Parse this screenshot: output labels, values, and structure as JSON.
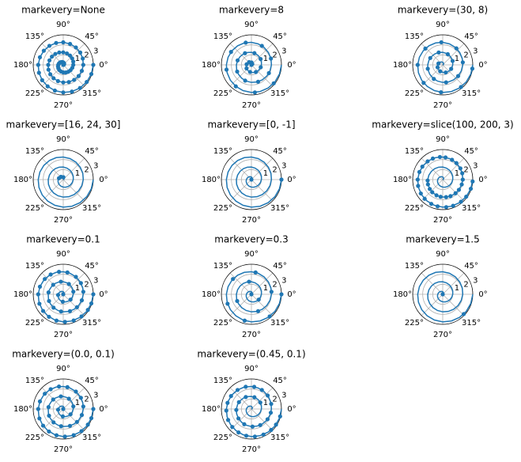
{
  "polar_axes": {
    "rlim": [
      0,
      3
    ],
    "rticks": [
      1,
      2,
      3
    ],
    "theta_ticks": [
      {
        "value": 0,
        "label": "0°"
      },
      {
        "value": 45,
        "label": "45°"
      },
      {
        "value": 90,
        "label": "90°"
      },
      {
        "value": 135,
        "label": "135°"
      },
      {
        "value": 180,
        "label": "180°"
      },
      {
        "value": 225,
        "label": "225°"
      },
      {
        "value": 270,
        "label": "270°"
      },
      {
        "value": 315,
        "label": "315°"
      }
    ],
    "line_color": "#1f77b4",
    "spiral_r": [
      0,
      0.05,
      0.1,
      0.15,
      0.2,
      0.25,
      0.3,
      0.35,
      0.4,
      0.45,
      0.5,
      0.55,
      0.6,
      0.65,
      0.7,
      0.75,
      0.8,
      0.85,
      0.9,
      0.95,
      1,
      1.05,
      1.1,
      1.15,
      1.2,
      1.25,
      1.3,
      1.35,
      1.4,
      1.45,
      1.5,
      1.55,
      1.6,
      1.65,
      1.7,
      1.75,
      1.8,
      1.85,
      1.9,
      1.95,
      2,
      2.05,
      2.1,
      2.15,
      2.2,
      2.25,
      2.3,
      2.35,
      2.4,
      2.45,
      2.5,
      2.55,
      2.6,
      2.65,
      2.7,
      2.75,
      2.8,
      2.85,
      2.9,
      2.95,
      3
    ]
  },
  "chart_data": [
    {
      "type": "polar",
      "title": "markevery=None",
      "markers_r": [
        0,
        0.05,
        0.1,
        0.15,
        0.2,
        0.25,
        0.3,
        0.35,
        0.4,
        0.45,
        0.5,
        0.55,
        0.6,
        0.65,
        0.7,
        0.75,
        0.8,
        0.85,
        0.9,
        0.95,
        1,
        1.05,
        1.1,
        1.15,
        1.2,
        1.25,
        1.3,
        1.35,
        1.4,
        1.45,
        1.5,
        1.55,
        1.6,
        1.65,
        1.7,
        1.75,
        1.8,
        1.85,
        1.9,
        1.95,
        2,
        2.05,
        2.1,
        2.15,
        2.2,
        2.25,
        2.3,
        2.35,
        2.4,
        2.45,
        2.5,
        2.55,
        2.6,
        2.65,
        2.7,
        2.75,
        2.8,
        2.85,
        2.9,
        2.95,
        3
      ]
    },
    {
      "type": "polar",
      "title": "markevery=8",
      "markers_r": [
        0,
        0.12,
        0.24,
        0.36,
        0.48,
        0.6,
        0.72,
        0.84,
        0.96,
        1.09,
        1.21,
        1.33,
        1.45,
        1.57,
        1.69,
        1.81,
        1.93,
        2.05,
        2.17,
        2.29,
        2.41,
        2.53,
        2.65,
        2.77,
        2.89
      ]
    },
    {
      "type": "polar",
      "title": "markevery=(30, 8)",
      "markers_r": [
        0.45,
        0.57,
        0.69,
        0.81,
        0.93,
        1.06,
        1.18,
        1.3,
        1.42,
        1.54,
        1.66,
        1.78,
        1.9,
        2.02,
        2.14,
        2.26,
        2.38,
        2.5,
        2.62,
        2.74,
        2.86,
        2.98
      ]
    },
    {
      "type": "polar",
      "title": "markevery=[16, 24, 30]",
      "markers_r": [
        0.24,
        0.36,
        0.45
      ]
    },
    {
      "type": "polar",
      "title": "markevery=[0, -1]",
      "markers_r": [
        0,
        3
      ]
    },
    {
      "type": "polar",
      "title": "markevery=slice(100, 200, 3)",
      "markers_r": [
        1.51,
        1.55,
        1.6,
        1.64,
        1.69,
        1.73,
        1.78,
        1.82,
        1.87,
        1.91,
        1.96,
        2,
        2.05,
        2.09,
        2.14,
        2.18,
        2.23,
        2.27,
        2.32,
        2.36,
        2.41,
        2.45,
        2.5,
        2.54,
        2.59,
        2.63,
        2.68,
        2.72,
        2.77,
        2.81,
        2.86,
        2.9,
        2.95,
        2.99
      ]
    },
    {
      "type": "polar",
      "title": "markevery=0.1",
      "markers_r": [
        0,
        0.52,
        0.74,
        0.9,
        1.04,
        1.17,
        1.28,
        1.38,
        1.48,
        1.57,
        1.65,
        1.73,
        1.81,
        1.88,
        1.95,
        2.02,
        2.09,
        2.15,
        2.22,
        2.28,
        2.34,
        2.39,
        2.45,
        2.5,
        2.56,
        2.61,
        2.66,
        2.71,
        2.76,
        2.81,
        2.86,
        2.91,
        2.95,
        3
      ]
    },
    {
      "type": "polar",
      "title": "markevery=0.3",
      "markers_r": [
        0,
        0.9,
        1.28,
        1.57,
        1.81,
        2.02,
        2.22,
        2.39,
        2.56,
        2.71,
        2.86,
        3
      ]
    },
    {
      "type": "polar",
      "title": "markevery=1.5",
      "markers_r": [
        0,
        2.88
      ]
    },
    {
      "type": "polar",
      "title": "markevery=(0.0, 0.1)",
      "markers_r": [
        0,
        0.52,
        0.74,
        0.9,
        1.04,
        1.17,
        1.28,
        1.38,
        1.48,
        1.57,
        1.65,
        1.73,
        1.81,
        1.88,
        1.95,
        2.02,
        2.09,
        2.15,
        2.22,
        2.28,
        2.34,
        2.39,
        2.45,
        2.5,
        2.56,
        2.61,
        2.66,
        2.71,
        2.76,
        2.81,
        2.86,
        2.91,
        2.95,
        3
      ]
    },
    {
      "type": "polar",
      "title": "markevery=(0.45, 0.1)",
      "markers_r": [
        1.1,
        1.21,
        1.32,
        1.42,
        1.51,
        1.6,
        1.68,
        1.76,
        1.83,
        1.91,
        1.97,
        2.04,
        2.11,
        2.17,
        2.23,
        2.29,
        2.35,
        2.41,
        2.46,
        2.51,
        2.57,
        2.62,
        2.67,
        2.72,
        2.77,
        2.82,
        2.87,
        2.91,
        2.96
      ]
    }
  ]
}
